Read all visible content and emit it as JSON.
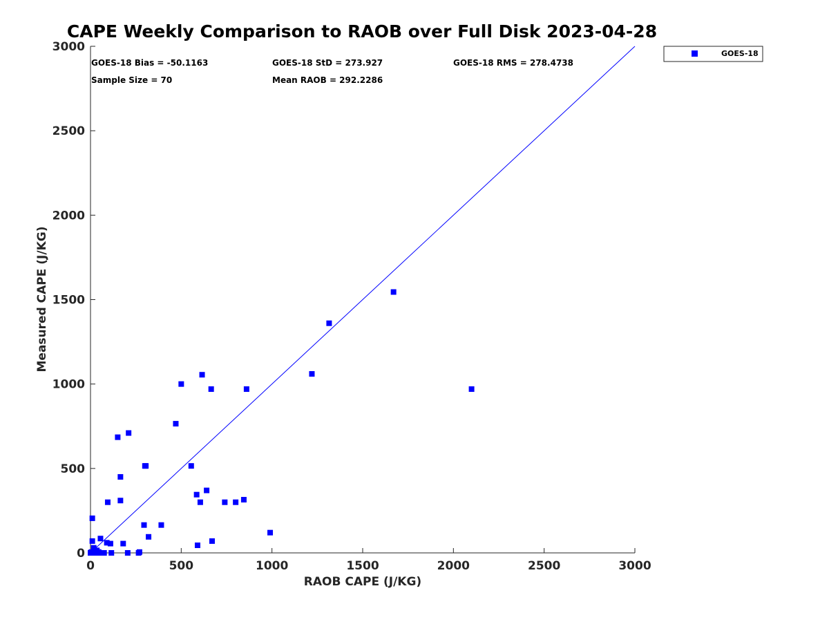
{
  "chart_data": {
    "type": "scatter",
    "title": "CAPE Weekly Comparison to RAOB over Full Disk 2023-04-28",
    "xlabel": "RAOB CAPE (J/KG)",
    "ylabel": "Measured CAPE (J/KG)",
    "xlim": [
      0,
      3000
    ],
    "ylim": [
      0,
      3000
    ],
    "xticks": [
      0,
      500,
      1000,
      1500,
      2000,
      2500,
      3000
    ],
    "yticks": [
      0,
      500,
      1000,
      1500,
      2000,
      2500,
      3000
    ],
    "xtick_labels": [
      "0",
      "500",
      "1000",
      "1500",
      "2000",
      "2500",
      "3000"
    ],
    "ytick_labels": [
      "0",
      "500",
      "1000",
      "1500",
      "2000",
      "2500",
      "3000"
    ],
    "grid": false,
    "legend_position": "outside-top-right",
    "reference_line": {
      "from": [
        0,
        0
      ],
      "to": [
        3000,
        3000
      ],
      "color": "#0000ff"
    },
    "stats": [
      "GOES-18 Bias = -50.1163",
      "GOES-18 StD = 273.927",
      "GOES-18 RMS = 278.4738",
      "Sample Size = 70",
      "Mean RAOB = 292.2286"
    ],
    "series": [
      {
        "name": "GOES-18",
        "color": "#0000ff",
        "marker": "square",
        "points": [
          [
            0,
            0
          ],
          [
            5,
            5
          ],
          [
            8,
            0
          ],
          [
            10,
            205
          ],
          [
            10,
            70
          ],
          [
            12,
            0
          ],
          [
            15,
            5
          ],
          [
            18,
            30
          ],
          [
            20,
            10
          ],
          [
            25,
            0
          ],
          [
            30,
            0
          ],
          [
            35,
            15
          ],
          [
            40,
            0
          ],
          [
            45,
            5
          ],
          [
            50,
            0
          ],
          [
            55,
            85
          ],
          [
            60,
            0
          ],
          [
            65,
            0
          ],
          [
            70,
            0
          ],
          [
            75,
            0
          ],
          [
            90,
            60
          ],
          [
            95,
            300
          ],
          [
            110,
            55
          ],
          [
            115,
            0
          ],
          [
            150,
            685
          ],
          [
            165,
            450
          ],
          [
            165,
            310
          ],
          [
            180,
            55
          ],
          [
            205,
            0
          ],
          [
            210,
            710
          ],
          [
            265,
            0
          ],
          [
            270,
            5
          ],
          [
            295,
            165
          ],
          [
            300,
            515
          ],
          [
            305,
            515
          ],
          [
            320,
            95
          ],
          [
            390,
            165
          ],
          [
            470,
            765
          ],
          [
            500,
            1000
          ],
          [
            555,
            515
          ],
          [
            585,
            345
          ],
          [
            590,
            45
          ],
          [
            605,
            300
          ],
          [
            615,
            1055
          ],
          [
            640,
            370
          ],
          [
            665,
            970
          ],
          [
            670,
            70
          ],
          [
            740,
            300
          ],
          [
            800,
            300
          ],
          [
            845,
            315
          ],
          [
            860,
            970
          ],
          [
            990,
            120
          ],
          [
            1220,
            1060
          ],
          [
            1315,
            1360
          ],
          [
            1670,
            1545
          ],
          [
            2100,
            970
          ]
        ]
      }
    ]
  }
}
